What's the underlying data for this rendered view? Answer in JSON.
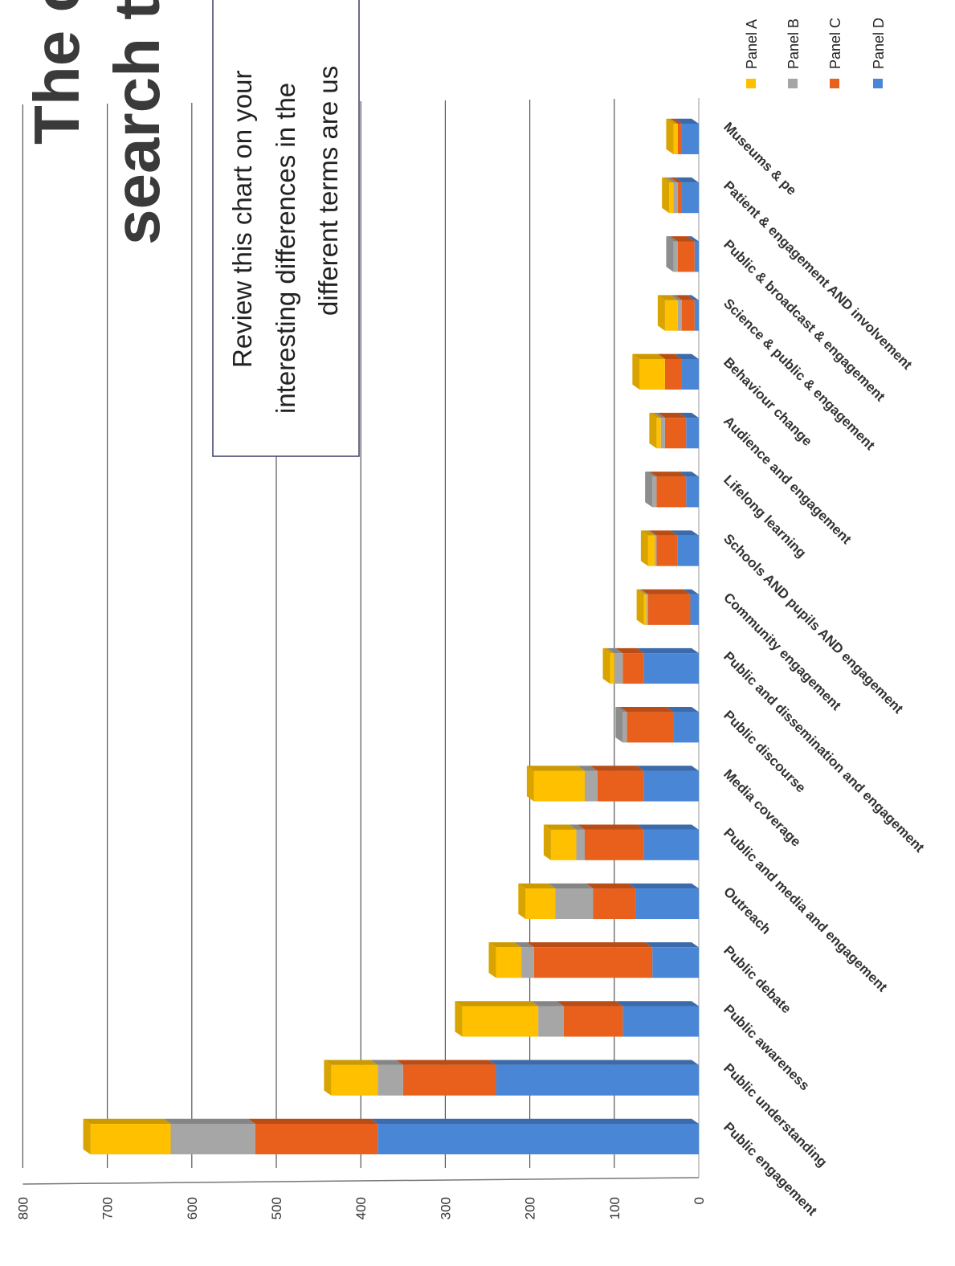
{
  "title": {
    "line1": "The c",
    "line2": "search te"
  },
  "callout": {
    "lines": [
      "Review this chart on your",
      "interesting differences in the",
      "different terms are us"
    ]
  },
  "colors": {
    "Panel A": "#ffc000",
    "Panel B": "#a6a6a6",
    "Panel C": "#e8601c",
    "Panel D": "#4a86d6"
  },
  "chart_data": {
    "type": "bar",
    "stacked": true,
    "orientation": "horizontal",
    "rotated_90_clockwise": true,
    "categories": [
      "Public engagement",
      "Public understanding",
      "Public awareness",
      "Public debate",
      "Outreach",
      "Public and media and engagement",
      "Media coverage",
      "Public discourse",
      "Public and dissemination and engagement",
      "Community engagement",
      "Schools AND pupils AND engagement",
      "Lifelong learning",
      "Audience and engagement",
      "Behaviour change",
      "Science & public & engagement",
      "Public & broadcast & engagement",
      "Patient & engagement AND involvement",
      "Museums & pe"
    ],
    "series": [
      {
        "name": "Panel D",
        "values": [
          380,
          240,
          90,
          55,
          75,
          65,
          65,
          30,
          65,
          10,
          25,
          15,
          15,
          20,
          5,
          5,
          20,
          20
        ]
      },
      {
        "name": "Panel C",
        "values": [
          145,
          110,
          70,
          140,
          50,
          70,
          55,
          55,
          25,
          50,
          25,
          35,
          25,
          20,
          15,
          20,
          5,
          5
        ]
      },
      {
        "name": "Panel B",
        "values": [
          100,
          30,
          30,
          15,
          45,
          10,
          15,
          5,
          10,
          2,
          2,
          5,
          5,
          0,
          5,
          5,
          5,
          0
        ]
      },
      {
        "name": "Panel A",
        "values": [
          95,
          55,
          90,
          30,
          35,
          30,
          60,
          0,
          5,
          3,
          8,
          0,
          5,
          30,
          15,
          0,
          5,
          5
        ]
      }
    ],
    "ylim": [
      0,
      800
    ],
    "yticks": [
      "0",
      "100",
      "200",
      "300",
      "400",
      "500",
      "600",
      "700",
      "800"
    ],
    "grid": true,
    "legend": "right",
    "xlabel": "",
    "ylabel": ""
  }
}
